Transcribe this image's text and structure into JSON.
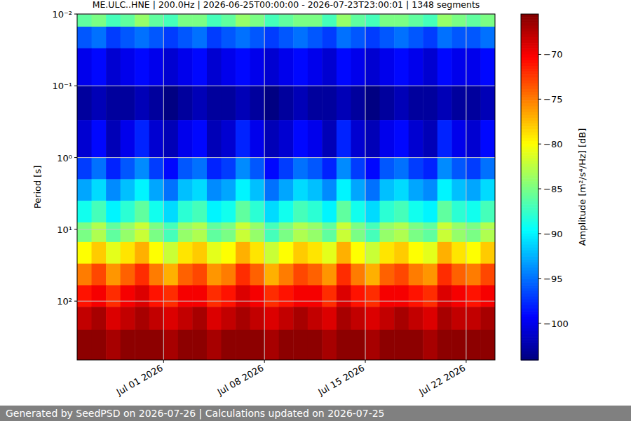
{
  "chart_data": {
    "type": "heatmap",
    "title": "ME.ULC..HNE | 200.0Hz | 2026-06-25T00:00:00 - 2026-07-23T23:00:01 | 1348 segments",
    "ylabel": "Period [s]",
    "footer": "Generated by SeedPSD on 2026-07-26 | Calculations updated on 2026-07-25",
    "x_bins": [
      "2026-06-25",
      "2026-06-26",
      "2026-06-27",
      "2026-06-28",
      "2026-06-29",
      "2026-06-30",
      "2026-07-01",
      "2026-07-02",
      "2026-07-03",
      "2026-07-04",
      "2026-07-05",
      "2026-07-06",
      "2026-07-07",
      "2026-07-08",
      "2026-07-09",
      "2026-07-10",
      "2026-07-11",
      "2026-07-12",
      "2026-07-13",
      "2026-07-14",
      "2026-07-15",
      "2026-07-16",
      "2026-07-17",
      "2026-07-18",
      "2026-07-19",
      "2026-07-20",
      "2026-07-21",
      "2026-07-22",
      "2026-07-23",
      "2026-07-24"
    ],
    "y_bins": [
      0.01,
      0.015,
      0.03,
      0.1,
      0.3,
      1,
      2,
      4,
      8,
      15,
      30,
      60,
      120,
      250,
      660
    ],
    "values": [
      [
        -86,
        -85,
        -87,
        -86,
        -84,
        -86,
        -87,
        -85,
        -85,
        -87,
        -86,
        -84,
        -85,
        -87,
        -86,
        -85,
        -85,
        -87,
        -84,
        -86,
        -87,
        -85,
        -85,
        -86,
        -87,
        -84,
        -85,
        -86,
        -85
      ],
      [
        -96,
        -95,
        -97,
        -96,
        -95,
        -96,
        -97,
        -96,
        -95,
        -97,
        -96,
        -95,
        -96,
        -97,
        -96,
        -95,
        -96,
        -97,
        -95,
        -96,
        -97,
        -96,
        -95,
        -96,
        -97,
        -95,
        -96,
        -96,
        -95
      ],
      [
        -100,
        -99,
        -101,
        -100,
        -99,
        -100,
        -101,
        -100,
        -99,
        -101,
        -100,
        -99,
        -100,
        -101,
        -100,
        -99,
        -100,
        -101,
        -99,
        -100,
        -101,
        -100,
        -99,
        -100,
        -101,
        -99,
        -100,
        -100,
        -99
      ],
      [
        -103,
        -102,
        -103,
        -103,
        -102,
        -103,
        -104,
        -103,
        -102,
        -103,
        -103,
        -102,
        -103,
        -104,
        -103,
        -102,
        -103,
        -103,
        -102,
        -103,
        -104,
        -103,
        -102,
        -103,
        -103,
        -102,
        -103,
        -103,
        -102
      ],
      [
        -101,
        -99,
        -102,
        -100,
        -98,
        -101,
        -102,
        -100,
        -99,
        -102,
        -101,
        -98,
        -100,
        -102,
        -101,
        -99,
        -100,
        -102,
        -98,
        -101,
        -102,
        -100,
        -99,
        -101,
        -102,
        -98,
        -100,
        -101,
        -99
      ],
      [
        -97,
        -95,
        -98,
        -96,
        -94,
        -97,
        -99,
        -96,
        -95,
        -98,
        -97,
        -94,
        -96,
        -99,
        -97,
        -95,
        -96,
        -98,
        -94,
        -97,
        -99,
        -96,
        -95,
        -97,
        -98,
        -94,
        -96,
        -97,
        -95
      ],
      [
        -93,
        -91,
        -94,
        -92,
        -90,
        -93,
        -95,
        -92,
        -91,
        -94,
        -93,
        -90,
        -92,
        -95,
        -93,
        -91,
        -92,
        -94,
        -90,
        -93,
        -95,
        -92,
        -91,
        -93,
        -94,
        -90,
        -92,
        -93,
        -91
      ],
      [
        -89,
        -87,
        -90,
        -88,
        -86,
        -89,
        -91,
        -88,
        -87,
        -90,
        -89,
        -86,
        -88,
        -91,
        -89,
        -87,
        -88,
        -90,
        -86,
        -89,
        -91,
        -88,
        -87,
        -89,
        -90,
        -86,
        -88,
        -89,
        -87
      ],
      [
        -85,
        -83,
        -86,
        -84,
        -82,
        -85,
        -87,
        -84,
        -83,
        -86,
        -85,
        -82,
        -84,
        -87,
        -85,
        -83,
        -84,
        -86,
        -82,
        -85,
        -87,
        -84,
        -83,
        -85,
        -86,
        -82,
        -84,
        -85,
        -83
      ],
      [
        -80,
        -78,
        -81,
        -79,
        -77,
        -80,
        -82,
        -79,
        -78,
        -81,
        -80,
        -77,
        -79,
        -82,
        -80,
        -78,
        -79,
        -81,
        -77,
        -80,
        -82,
        -79,
        -78,
        -80,
        -81,
        -77,
        -79,
        -80,
        -78
      ],
      [
        -75,
        -73,
        -76,
        -74,
        -72,
        -75,
        -77,
        -74,
        -73,
        -76,
        -75,
        -72,
        -74,
        -77,
        -75,
        -73,
        -74,
        -76,
        -72,
        -75,
        -77,
        -74,
        -73,
        -75,
        -76,
        -72,
        -74,
        -75,
        -73
      ],
      [
        -71,
        -70,
        -72,
        -70,
        -69,
        -71,
        -72,
        -70,
        -70,
        -72,
        -71,
        -69,
        -70,
        -72,
        -71,
        -70,
        -70,
        -72,
        -69,
        -71,
        -72,
        -70,
        -70,
        -71,
        -72,
        -69,
        -70,
        -71,
        -70
      ],
      [
        -68,
        -67,
        -69,
        -68,
        -67,
        -68,
        -69,
        -68,
        -67,
        -69,
        -68,
        -67,
        -68,
        -69,
        -68,
        -67,
        -68,
        -69,
        -67,
        -68,
        -69,
        -68,
        -67,
        -68,
        -69,
        -67,
        -68,
        -68,
        -67
      ],
      [
        -66,
        -66,
        -67,
        -66,
        -66,
        -66,
        -67,
        -66,
        -66,
        -67,
        -66,
        -66,
        -66,
        -67,
        -66,
        -66,
        -66,
        -67,
        -66,
        -66,
        -67,
        -66,
        -66,
        -66,
        -67,
        -66,
        -66,
        -66,
        -66
      ]
    ],
    "xlim": [
      "2026-06-25",
      "2026-07-24"
    ],
    "xticks": [
      {
        "value": "2026-07-01",
        "label": "Jul 01 2026"
      },
      {
        "value": "2026-07-08",
        "label": "Jul 08 2026"
      },
      {
        "value": "2026-07-15",
        "label": "Jul 15 2026"
      },
      {
        "value": "2026-07-22",
        "label": "Jul 22 2026"
      }
    ],
    "ylim": [
      0.01,
      660
    ],
    "yticks": [
      {
        "value": 0.01,
        "label": "10⁻²"
      },
      {
        "value": 0.1,
        "label": "10⁻¹"
      },
      {
        "value": 1,
        "label": "10⁰"
      },
      {
        "value": 10,
        "label": "10¹"
      },
      {
        "value": 100,
        "label": "10²"
      }
    ],
    "log": "y",
    "grid": true,
    "color": "jet",
    "colorbar": {
      "label": "Amplitude [m²/s⁴/Hz] [dB]",
      "range": [
        -104.1,
        -65.5
      ],
      "ticks": [
        -100,
        -95,
        -90,
        -85,
        -80,
        -75,
        -70
      ]
    }
  }
}
